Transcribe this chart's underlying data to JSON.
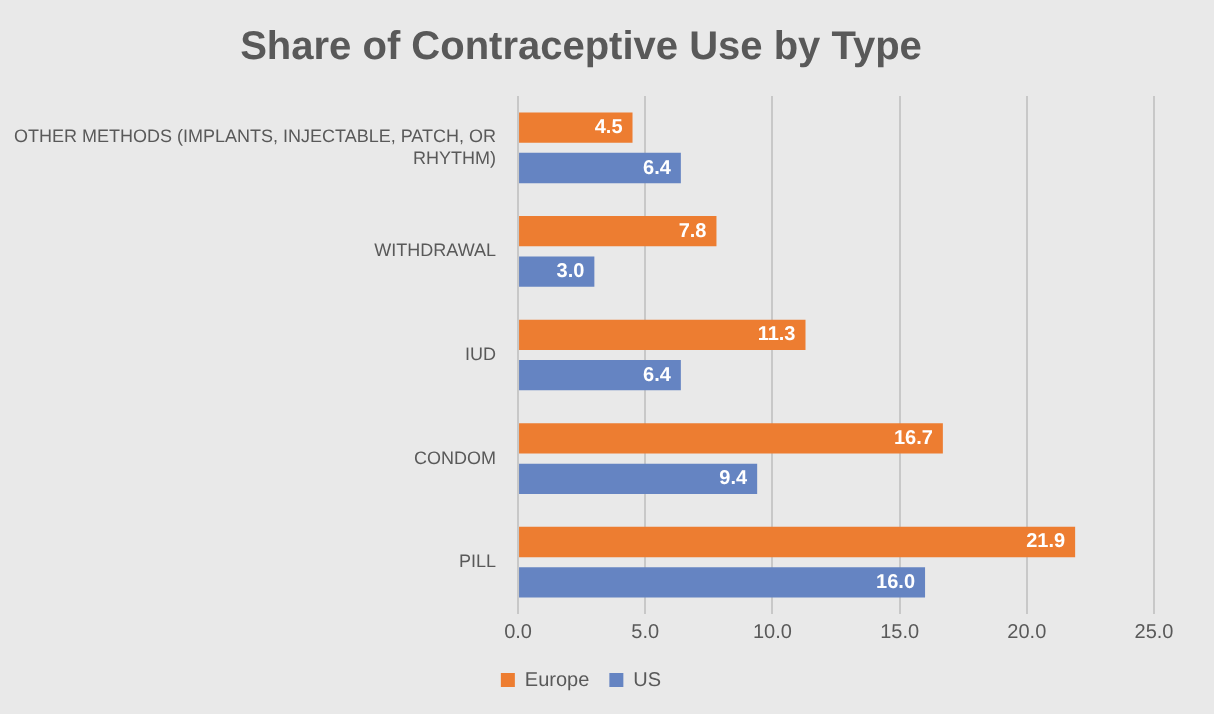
{
  "chart_data": {
    "type": "bar",
    "orientation": "horizontal",
    "title": "Share of Contraceptive Use by Type",
    "categories": [
      "OTHER METHODS (IMPLANTS, INJECTABLE, PATCH, OR RHYTHM)",
      "WITHDRAWAL",
      "IUD",
      "CONDOM",
      "PILL"
    ],
    "series": [
      {
        "name": "Europe",
        "color": "#ed7d31",
        "values": [
          4.5,
          7.8,
          11.3,
          16.7,
          21.9
        ],
        "value_labels": [
          "4.5",
          "7.8",
          "11.3",
          "16.7",
          "21.9"
        ]
      },
      {
        "name": "US",
        "color": "#6584c2",
        "values": [
          6.4,
          3.0,
          6.4,
          9.4,
          16.0
        ],
        "value_labels": [
          "6.4",
          "3.0",
          "6.4",
          "9.4",
          "16.0"
        ]
      }
    ],
    "xlim": [
      0,
      25
    ],
    "xticks": [
      {
        "value": 0,
        "label": "0.0"
      },
      {
        "value": 5,
        "label": "5.0"
      },
      {
        "value": 10,
        "label": "10.0"
      },
      {
        "value": 15,
        "label": "15.0"
      },
      {
        "value": 20,
        "label": "20.0"
      },
      {
        "value": 25,
        "label": "25.0"
      }
    ],
    "grid": "x",
    "legend": "bottom"
  }
}
